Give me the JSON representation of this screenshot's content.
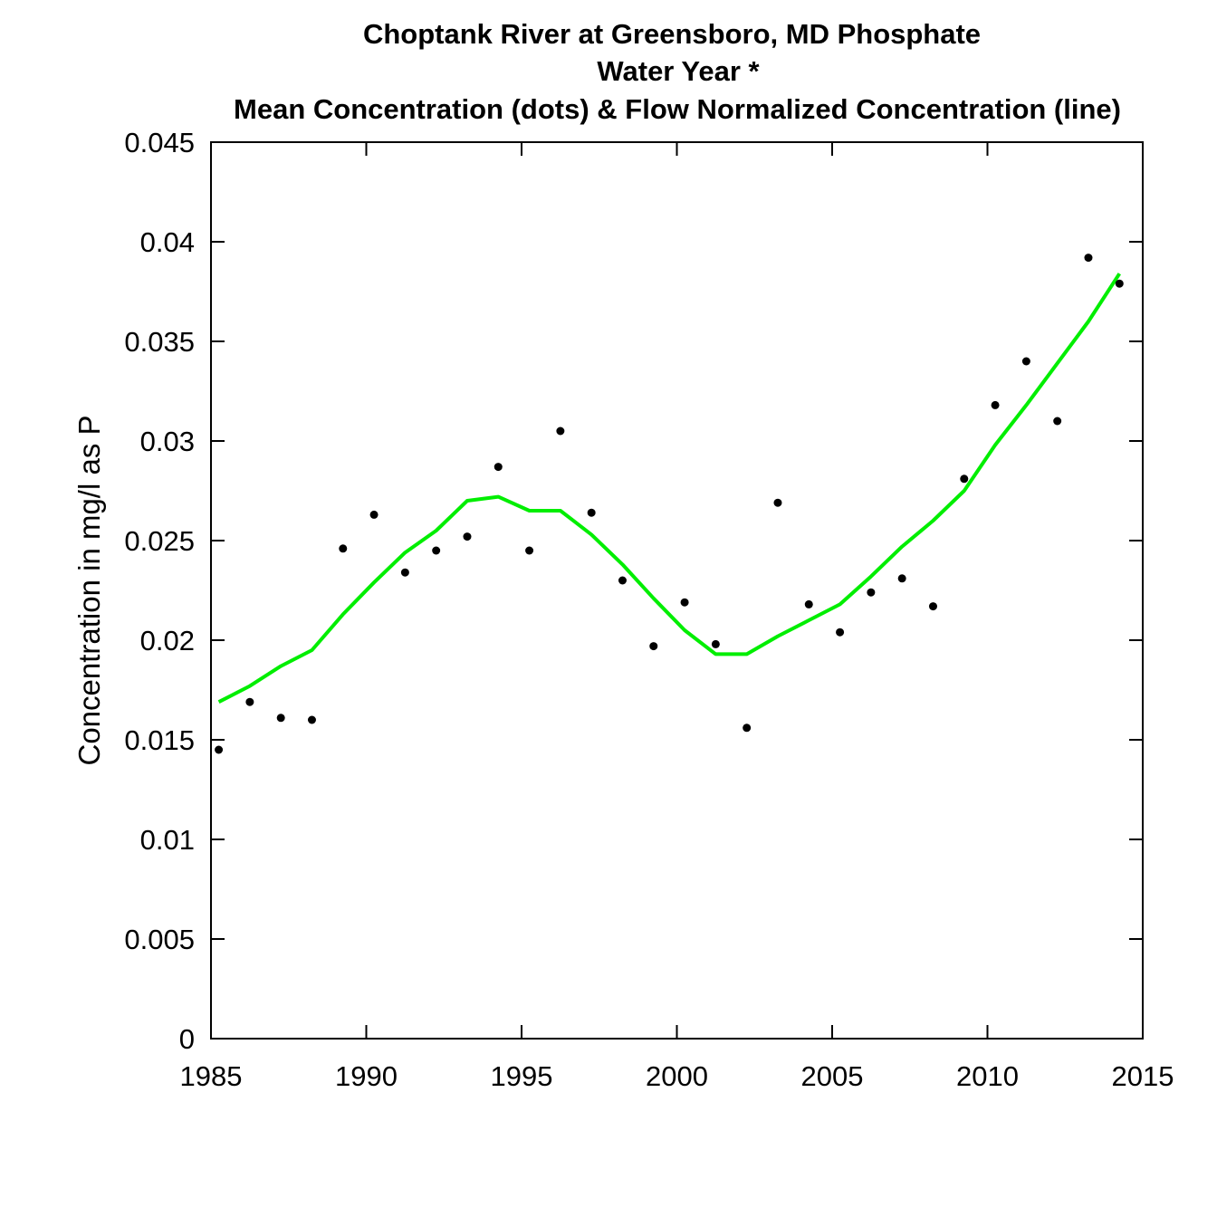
{
  "chart_data": {
    "type": "scatter",
    "title": "Choptank River at Greensboro, MD   Phosphate",
    "subtitle": "Water Year *",
    "subtitle2": "Mean Concentration (dots) & Flow Normalized Concentration (line)",
    "xlabel": "",
    "ylabel": "Concentration in mg/l as P",
    "xlim": [
      1985,
      2015
    ],
    "ylim": [
      0,
      0.045
    ],
    "xticks": [
      "1985",
      "1990",
      "1995",
      "2000",
      "2005",
      "2010",
      "2015"
    ],
    "yticks": [
      "0",
      "0.005",
      "0.01",
      "0.015",
      "0.02",
      "0.025",
      "0.03",
      "0.035",
      "0.04",
      "0.045"
    ],
    "grid": false,
    "series": [
      {
        "kind": "points",
        "color": "#000000",
        "x": [
          1985.25,
          1986.25,
          1987.25,
          1988.25,
          1989.25,
          1990.25,
          1991.25,
          1992.25,
          1993.25,
          1994.25,
          1995.25,
          1996.25,
          1997.25,
          1998.25,
          1999.25,
          2000.25,
          2001.25,
          2002.25,
          2003.25,
          2004.25,
          2005.25,
          2006.25,
          2007.25,
          2008.25,
          2009.25,
          2010.25,
          2011.25,
          2012.25,
          2013.25,
          2014.25
        ],
        "y": [
          0.0145,
          0.0169,
          0.0161,
          0.016,
          0.0246,
          0.0263,
          0.0234,
          0.0245,
          0.0252,
          0.0287,
          0.0245,
          0.0305,
          0.0264,
          0.023,
          0.0197,
          0.0219,
          0.0198,
          0.0156,
          0.0269,
          0.0218,
          0.0204,
          0.0224,
          0.0231,
          0.0217,
          0.0281,
          0.0318,
          0.034,
          0.031,
          0.0392,
          0.0379
        ]
      },
      {
        "kind": "line",
        "color": "#00ee00",
        "x": [
          1985.25,
          1986.25,
          1987.25,
          1988.25,
          1989.25,
          1990.25,
          1991.25,
          1992.25,
          1993.25,
          1994.25,
          1995.25,
          1996.25,
          1997.25,
          1998.25,
          1999.25,
          2000.25,
          2001.25,
          2002.25,
          2003.25,
          2004.25,
          2005.25,
          2006.25,
          2007.25,
          2008.25,
          2009.25,
          2010.25,
          2011.25,
          2012.25,
          2013.25,
          2014.25
        ],
        "y": [
          0.0169,
          0.0177,
          0.0187,
          0.0195,
          0.0213,
          0.0229,
          0.0244,
          0.0255,
          0.027,
          0.0272,
          0.0265,
          0.0265,
          0.0253,
          0.0238,
          0.0221,
          0.0205,
          0.0193,
          0.0193,
          0.0202,
          0.021,
          0.0218,
          0.0232,
          0.0247,
          0.026,
          0.0275,
          0.0298,
          0.0318,
          0.0339,
          0.036,
          0.0384
        ]
      }
    ]
  }
}
